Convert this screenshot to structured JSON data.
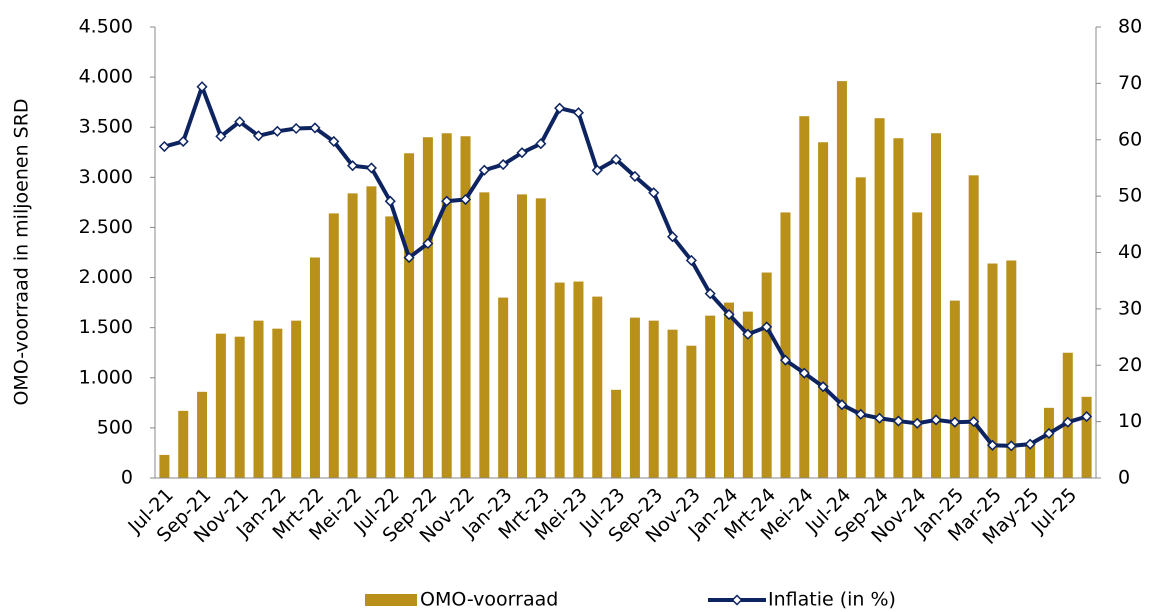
{
  "chart_data": {
    "type": "bar_line",
    "y_label": "OMO-voorraad in miljoenen SRD",
    "categories": [
      "Jul-21",
      null,
      "Sep-21",
      null,
      "Nov-21",
      null,
      "Jan-22",
      null,
      "Mrt-22",
      null,
      "Mei-22",
      null,
      "Jul-22",
      null,
      "Sep-22",
      null,
      "Nov-22",
      null,
      "Jan-23",
      null,
      "Mrt-23",
      null,
      "Mei-23",
      null,
      "Jul-23",
      null,
      "Sep-23",
      null,
      "Nov-23",
      null,
      "Jan-24",
      null,
      "Mrt-24",
      null,
      "Mei-24",
      null,
      "Jul-24",
      null,
      "Sep-24",
      null,
      "Nov-24",
      null,
      "Jan-25",
      null,
      "Mar-25",
      null,
      "May-25",
      null,
      "Jul-25",
      null
    ],
    "series": [
      {
        "name": "OMO-voorraad",
        "type": "bar",
        "color": "#b8901a",
        "values": [
          230,
          670,
          860,
          1440,
          1410,
          1570,
          1490,
          1570,
          2200,
          2640,
          2840,
          2910,
          2610,
          3240,
          3400,
          3440,
          3410,
          2850,
          1800,
          2830,
          2790,
          1950,
          1960,
          1810,
          880,
          1600,
          1570,
          1480,
          1320,
          1620,
          1750,
          1660,
          2050,
          2650,
          3610,
          3350,
          3960,
          3000,
          3590,
          3390,
          2650,
          3440,
          1770,
          3020,
          2140,
          2170,
          350,
          700,
          1250,
          810
        ]
      },
      {
        "name": "Inflatie (in %)",
        "type": "line",
        "axis": "y2",
        "color": "#0d2461",
        "values": [
          58.8,
          59.7,
          69.4,
          60.6,
          63.2,
          60.7,
          61.5,
          62.0,
          62.1,
          59.7,
          55.4,
          55.0,
          49.1,
          39.1,
          41.6,
          49.1,
          49.4,
          54.6,
          55.6,
          57.7,
          59.3,
          65.6,
          64.8,
          54.6,
          56.5,
          53.5,
          50.6,
          42.8,
          38.6,
          32.7,
          29.0,
          25.5,
          26.8,
          20.9,
          18.6,
          16.2,
          13.0,
          11.3,
          10.6,
          10.1,
          9.7,
          10.3,
          9.9,
          10.0,
          5.8,
          5.7,
          6.0,
          7.9,
          9.9,
          10.9
        ]
      }
    ],
    "ylim": [
      0,
      4500
    ],
    "yticks": [
      0,
      500,
      {
        "value": 1000,
        "label": "1.000"
      },
      {
        "value": 1500,
        "label": "1.500"
      },
      {
        "value": 2000,
        "label": "2.000"
      },
      {
        "value": 2500,
        "label": "2.500"
      },
      {
        "value": 3000,
        "label": "3.000"
      },
      {
        "value": 3500,
        "label": "3.500"
      },
      {
        "value": 4000,
        "label": "4.000"
      },
      {
        "value": 4500,
        "label": "4.500"
      }
    ],
    "y2lim": [
      0,
      80
    ],
    "y2ticks": [
      0,
      10,
      20,
      30,
      40,
      50,
      60,
      70,
      80
    ],
    "legend": "bottom"
  }
}
